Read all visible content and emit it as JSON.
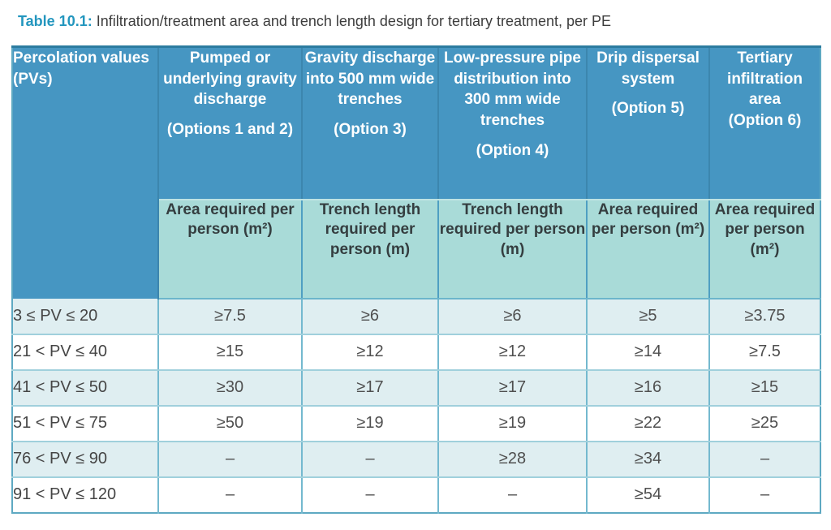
{
  "caption": {
    "label": "Table 10.1:",
    "text": "Infiltration/treatment area and trench length design for tertiary treatment, per PE"
  },
  "colors": {
    "header_blue": "#4696c2",
    "subheader_teal": "#a9dbd8",
    "alt_row": "#dfeef1",
    "border_teal": "#6cb5cb",
    "caption_accent": "#2396be"
  },
  "table": {
    "row_header": "Percolation values (PVs)",
    "columns": [
      {
        "title": "Pumped or underlying gravity discharge",
        "option": "(Options 1 and 2)",
        "option_gap": true,
        "subheader": "Area required per person (m²)"
      },
      {
        "title": "Gravity discharge into 500 mm wide trenches",
        "option": "(Option 3)",
        "option_gap": true,
        "subheader": "Trench length required per person (m)"
      },
      {
        "title": "Low-pressure pipe distribution into 300 mm wide trenches",
        "option": "(Option 4)",
        "option_gap": true,
        "subheader": "Trench length required per person (m)"
      },
      {
        "title": "Drip dispersal system",
        "option": "(Option 5)",
        "option_gap": true,
        "subheader": "Area required per person (m²)"
      },
      {
        "title": "Tertiary infiltration area",
        "option": "(Option 6)",
        "option_gap": false,
        "subheader": "Area required per person (m²)"
      }
    ],
    "rows": [
      {
        "pv": "3 ≤ PV ≤ 20",
        "values": [
          "≥7.5",
          "≥6",
          "≥6",
          "≥5",
          "≥3.75"
        ]
      },
      {
        "pv": "21 < PV ≤ 40",
        "values": [
          "≥15",
          "≥12",
          "≥12",
          "≥14",
          "≥7.5"
        ]
      },
      {
        "pv": "41 < PV ≤ 50",
        "values": [
          "≥30",
          "≥17",
          "≥17",
          "≥16",
          "≥15"
        ]
      },
      {
        "pv": "51 < PV ≤ 75",
        "values": [
          "≥50",
          "≥19",
          "≥19",
          "≥22",
          "≥25"
        ]
      },
      {
        "pv": "76 < PV ≤ 90",
        "values": [
          "–",
          "–",
          "≥28",
          "≥34",
          "–"
        ]
      },
      {
        "pv": "91 < PV ≤ 120",
        "values": [
          "–",
          "–",
          "–",
          "≥54",
          "–"
        ]
      }
    ]
  }
}
